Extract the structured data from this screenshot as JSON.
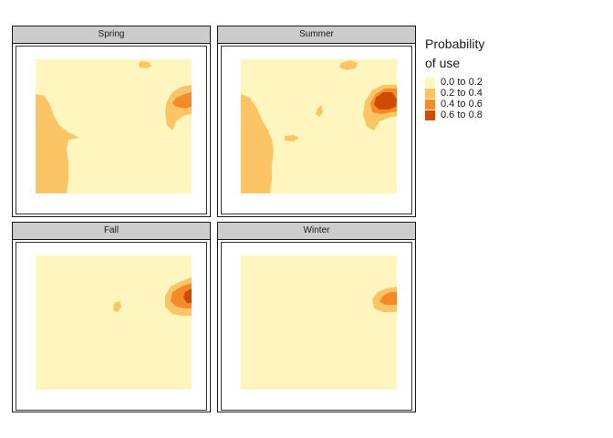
{
  "panels": [
    {
      "id": "spring",
      "label": "Spring"
    },
    {
      "id": "summer",
      "label": "Summer"
    },
    {
      "id": "fall",
      "label": "Fall"
    },
    {
      "id": "winter",
      "label": "Winter"
    }
  ],
  "legend": {
    "title_line1": "Probability",
    "title_line2": "of use",
    "items": [
      {
        "label": "0.0 to 0.2",
        "color": "#FFF5BF"
      },
      {
        "label": "0.2 to 0.4",
        "color": "#FBC465"
      },
      {
        "label": "0.4 to 0.6",
        "color": "#F58A2B"
      },
      {
        "label": "0.6 to 0.8",
        "color": "#CC4C02"
      }
    ]
  }
}
